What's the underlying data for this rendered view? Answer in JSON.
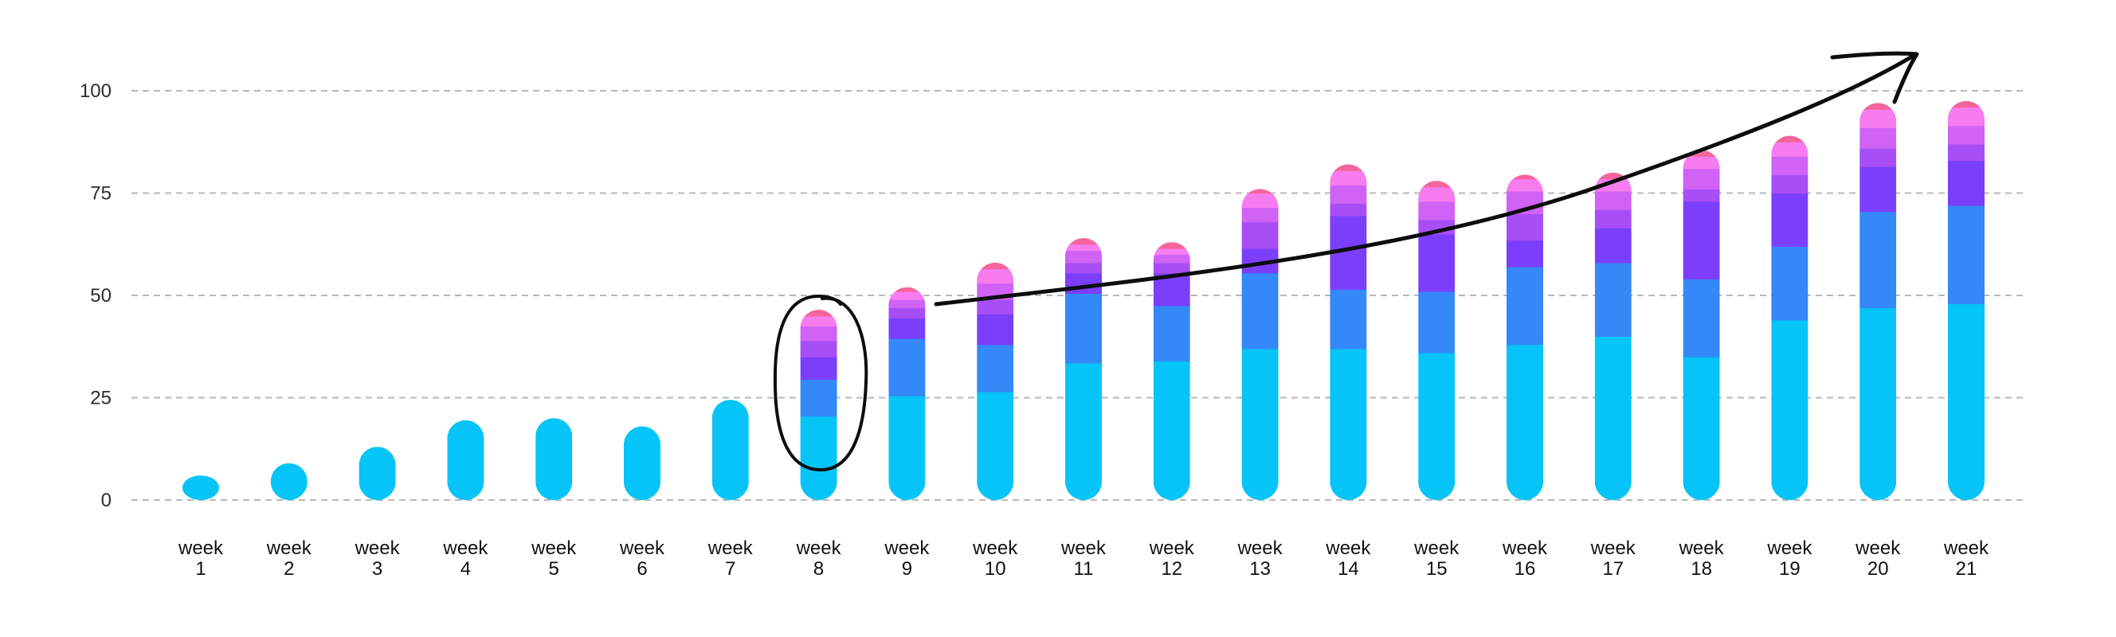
{
  "chart_data": {
    "type": "bar",
    "stacked": true,
    "categories": [
      [
        "week",
        "1"
      ],
      [
        "week",
        "2"
      ],
      [
        "week",
        "3"
      ],
      [
        "week",
        "4"
      ],
      [
        "week",
        "5"
      ],
      [
        "week",
        "6"
      ],
      [
        "week",
        "7"
      ],
      [
        "week",
        "8"
      ],
      [
        "week",
        "9"
      ],
      [
        "week",
        "10"
      ],
      [
        "week",
        "11"
      ],
      [
        "week",
        "12"
      ],
      [
        "week",
        "13"
      ],
      [
        "week",
        "14"
      ],
      [
        "week",
        "15"
      ],
      [
        "week",
        "16"
      ],
      [
        "week",
        "17"
      ],
      [
        "week",
        "18"
      ],
      [
        "week",
        "19"
      ],
      [
        "week",
        "20"
      ],
      [
        "week",
        "21"
      ]
    ],
    "y_ticks": [
      "0",
      "25",
      "50",
      "75",
      "100"
    ],
    "ylim": [
      0,
      110
    ],
    "grid": true,
    "colors": [
      "#06c4f8",
      "#3488f7",
      "#7b3ffb",
      "#a84ef7",
      "#d063f5",
      "#f67cf0",
      "#f5649c"
    ],
    "series": [
      {
        "values": [
          6,
          9,
          13,
          19.5,
          20,
          18,
          24.5,
          20.5,
          25.5,
          26.5,
          33.5,
          34,
          37,
          37,
          36,
          38,
          40,
          35,
          44,
          47,
          48
        ]
      },
      {
        "values": [
          0,
          0,
          0,
          0,
          0,
          0,
          0,
          9,
          14,
          11.5,
          17,
          13.5,
          18.5,
          14.5,
          15,
          19,
          18,
          19,
          18,
          23.5,
          24
        ]
      },
      {
        "values": [
          0,
          0,
          0,
          0,
          0,
          0,
          0,
          5.5,
          5,
          7.5,
          5,
          8,
          6,
          18,
          14,
          6.5,
          8.5,
          19,
          13,
          11,
          11
        ]
      },
      {
        "values": [
          0,
          0,
          0,
          0,
          0,
          0,
          0,
          4,
          2.5,
          3.5,
          2.5,
          2.5,
          6.5,
          3,
          3.5,
          6.5,
          4.5,
          3,
          4.5,
          4.5,
          4
        ]
      },
      {
        "values": [
          0,
          0,
          0,
          0,
          0,
          0,
          0,
          3.5,
          2,
          4,
          3,
          2,
          3.5,
          4.5,
          4.5,
          5.5,
          4.5,
          5,
          4.5,
          5,
          4.5
        ]
      },
      {
        "values": [
          0,
          0,
          0,
          0,
          0,
          0,
          0,
          2.5,
          2,
          3.5,
          1.5,
          1.5,
          3.5,
          3.5,
          3.5,
          3,
          3,
          3,
          3.5,
          4.5,
          4.5
        ]
      },
      {
        "values": [
          0,
          0,
          0,
          0,
          0,
          0,
          0,
          1.5,
          1,
          1.5,
          1.5,
          1.5,
          1,
          1.5,
          1.5,
          1,
          1.5,
          1.5,
          1.5,
          1.5,
          1.5
        ]
      }
    ],
    "annotations": [
      {
        "type": "circle",
        "target": "week 8"
      },
      {
        "type": "arrow",
        "from": "week 9",
        "to": "week 20",
        "direction": "upward trend"
      }
    ]
  }
}
